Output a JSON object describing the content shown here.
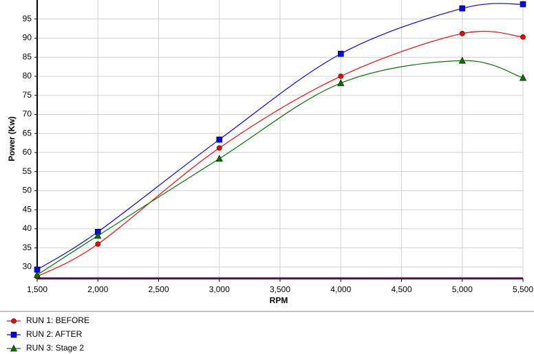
{
  "chart_data": {
    "type": "line",
    "x_label": "RPM",
    "y_label": "Power (Kw)",
    "x": [
      1500,
      2000,
      3000,
      4000,
      5000,
      5500
    ],
    "series": [
      {
        "name": "RUN 1: BEFORE",
        "color": "#ff0000",
        "marker": "circle",
        "values": [
          27.5,
          36,
          61.2,
          80,
          91.2,
          90.3
        ]
      },
      {
        "name": "RUN 2: AFTER",
        "color": "#0000ff",
        "marker": "square",
        "values": [
          29.3,
          39.2,
          63.4,
          85.9,
          97.8,
          98.9
        ]
      },
      {
        "name": "RUN 3: Stage 2",
        "color": "#007700",
        "marker": "triangle",
        "values": [
          27.9,
          38.2,
          58.4,
          78.2,
          84.1,
          79.6
        ]
      }
    ],
    "xlim": [
      1500,
      5500
    ],
    "xticks": [
      {
        "value": 1500,
        "label": "1,500"
      },
      {
        "value": 2000,
        "label": "2,000"
      },
      {
        "value": 2500,
        "label": "2,500"
      },
      {
        "value": 3000,
        "label": "3,000"
      },
      {
        "value": 3500,
        "label": "3,500"
      },
      {
        "value": 4000,
        "label": "4,000"
      },
      {
        "value": 4500,
        "label": "4,500"
      },
      {
        "value": 5000,
        "label": "5,000"
      },
      {
        "value": 5500,
        "label": "5,500"
      }
    ],
    "ylim": [
      27,
      100
    ],
    "yticks": [
      30,
      35,
      40,
      45,
      50,
      55,
      60,
      65,
      70,
      75,
      80,
      85,
      90,
      95
    ],
    "grid": true
  }
}
